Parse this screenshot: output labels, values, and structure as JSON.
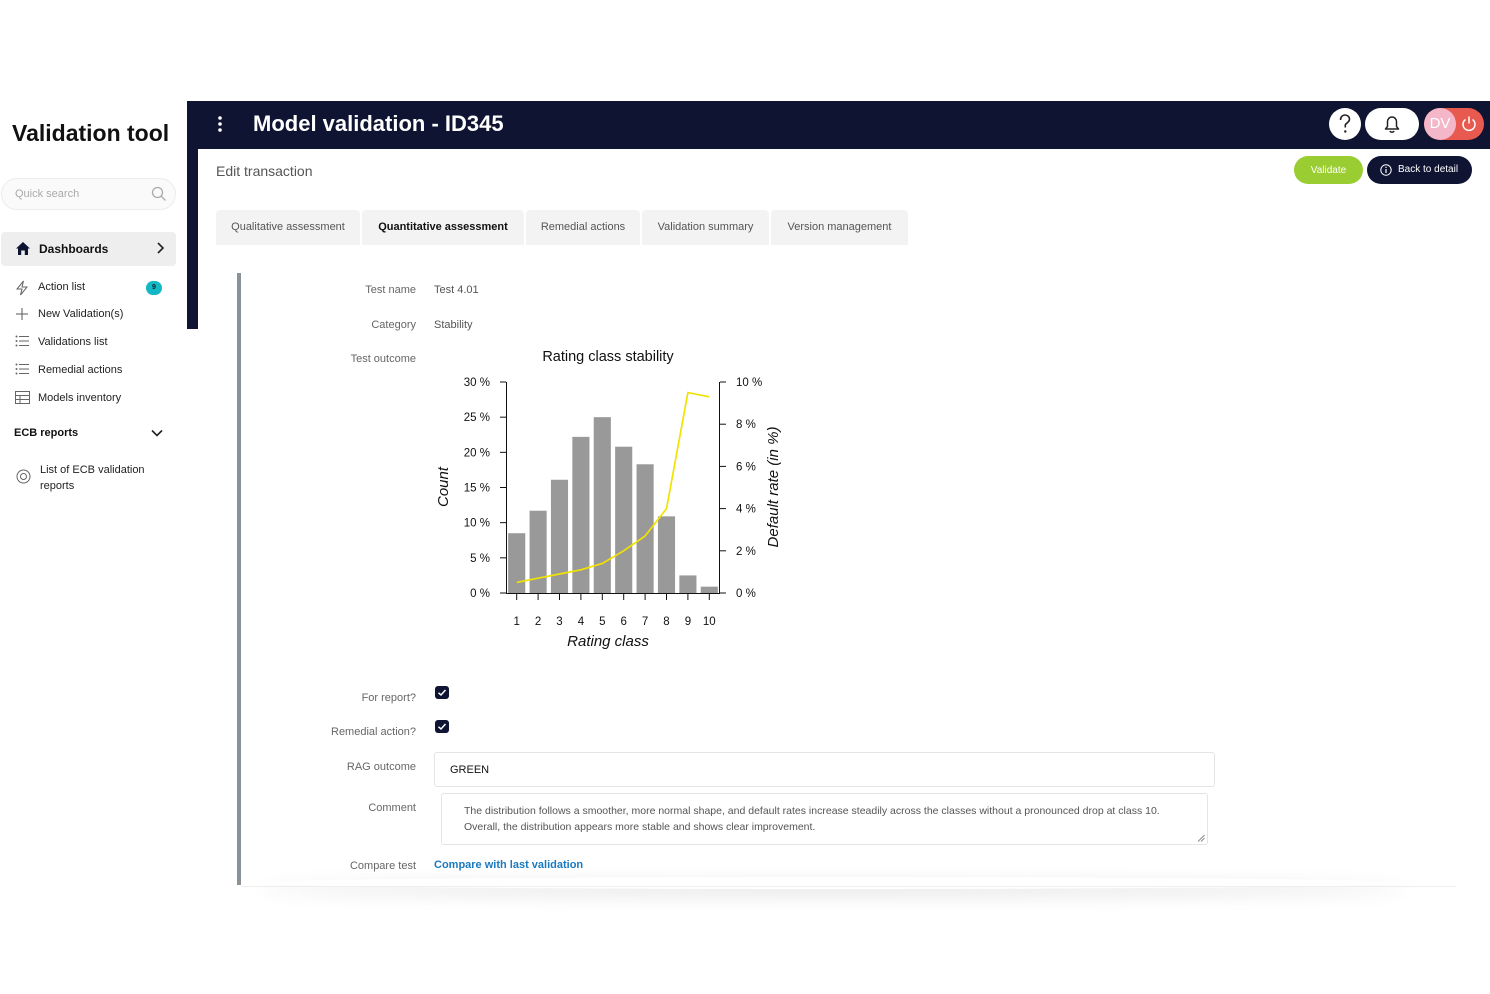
{
  "sidebar": {
    "app_title": "Validation tool",
    "search_placeholder": "Quick search",
    "dashboards_label": "Dashboards",
    "items": [
      {
        "label": "Action list",
        "badge": "9",
        "icon": "lightning-icon"
      },
      {
        "label": "New Validation(s)",
        "icon": "plus-icon"
      },
      {
        "label": "Validations list",
        "icon": "list-icon"
      },
      {
        "label": "Remedial actions",
        "icon": "list-icon"
      },
      {
        "label": "Models inventory",
        "icon": "table-icon"
      }
    ],
    "ecb_section": "ECB reports",
    "ecb_item": "List of ECB validation reports"
  },
  "header": {
    "title": "Model validation - ID345",
    "avatar_initials": "DV"
  },
  "main": {
    "edit_title": "Edit transaction",
    "validate_label": "Validate",
    "back_label": "Back to detail",
    "tabs": [
      {
        "label": "Qualitative assessment",
        "active": false
      },
      {
        "label": "Quantitative assessment",
        "active": true
      },
      {
        "label": "Remedial actions",
        "active": false
      },
      {
        "label": "Validation summary",
        "active": false
      },
      {
        "label": "Version management",
        "active": false
      }
    ]
  },
  "form": {
    "test_name_label": "Test name",
    "test_name_value": "Test 4.01",
    "category_label": "Category",
    "category_value": "Stability",
    "outcome_label": "Test outcome",
    "for_report_label": "For report?",
    "for_report_checked": true,
    "remedial_label": "Remedial action?",
    "remedial_checked": true,
    "rag_label": "RAG outcome",
    "rag_value": "GREEN",
    "comment_label": "Comment",
    "comment_value": "The distribution follows a smoother, more normal shape, and default rates increase steadily across the classes without a pronounced drop at class 10. Overall, the distribution appears more stable and shows clear improvement.",
    "compare_label": "Compare test",
    "compare_link": "Compare with last validation"
  },
  "chart_data": {
    "type": "bar",
    "title": "Rating class stability",
    "xlabel": "Rating class",
    "ylabel": "Count",
    "y2label": "Default rate (in %)",
    "categories": [
      "1",
      "2",
      "3",
      "4",
      "5",
      "6",
      "7",
      "8",
      "9",
      "10"
    ],
    "ylim": [
      0,
      30
    ],
    "y2lim": [
      0,
      10
    ],
    "yticks": [
      "0 %",
      "5 %",
      "10 %",
      "15 %",
      "20 %",
      "25 %",
      "30 %"
    ],
    "y2ticks": [
      "0 %",
      "2 %",
      "4 %",
      "6 %",
      "8 %",
      "10 %"
    ],
    "series": [
      {
        "kind": "bar",
        "color": "#999999",
        "values": [
          8.5,
          11.7,
          16.1,
          22.2,
          25.0,
          20.8,
          18.3,
          10.9,
          2.5,
          0.9
        ]
      },
      {
        "kind": "line",
        "color": "#f2e200",
        "axis": "right",
        "values": [
          0.5,
          0.7,
          0.9,
          1.1,
          1.4,
          2.0,
          2.7,
          4.0,
          9.5,
          9.3
        ]
      }
    ]
  }
}
